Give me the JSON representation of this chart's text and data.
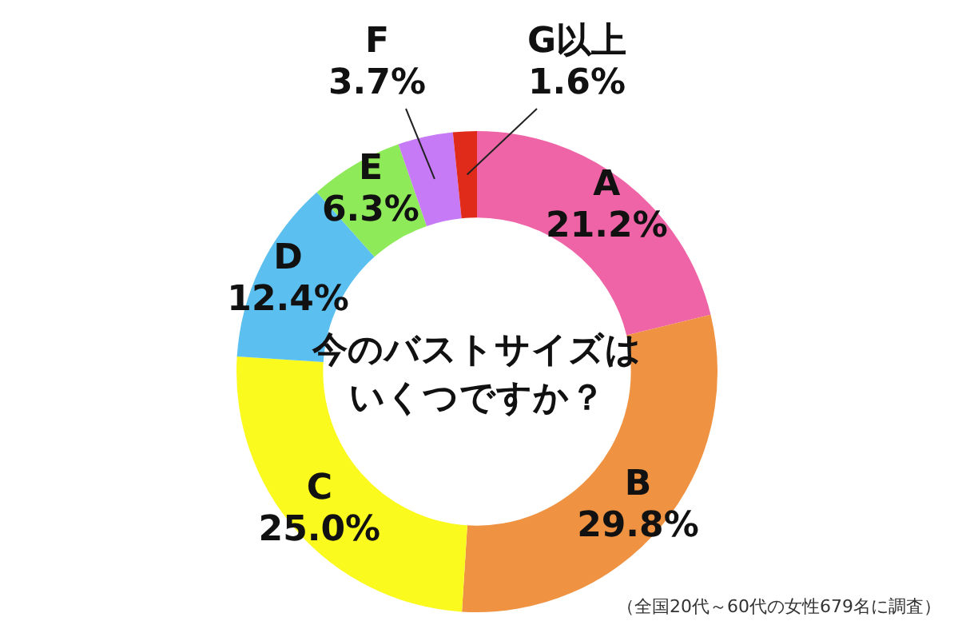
{
  "chart_data": {
    "type": "donut",
    "title": "今のバストサイズはいくつですか？",
    "categories": [
      "A",
      "B",
      "C",
      "D",
      "E",
      "F",
      "G以上"
    ],
    "values": [
      21.2,
      29.8,
      25.0,
      12.4,
      6.3,
      3.7,
      1.6
    ],
    "value_labels": [
      "21.2%",
      "29.8%",
      "25.0%",
      "12.4%",
      "6.3%",
      "3.7%",
      "1.6%"
    ],
    "colors": [
      "#ef64a6",
      "#ef9343",
      "#fafa1e",
      "#5bbff0",
      "#8fea5a",
      "#c77af5",
      "#e02a1a"
    ],
    "annotations": [
      "（全国20代～60代の女性679名に調査）"
    ],
    "legend": false
  }
}
